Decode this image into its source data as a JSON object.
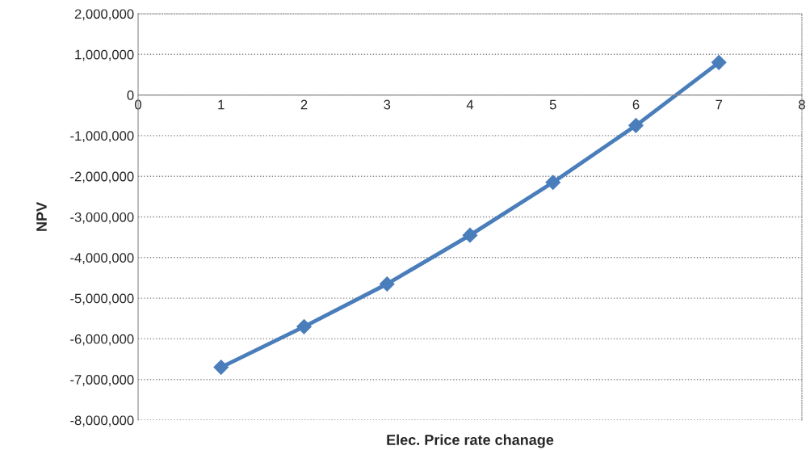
{
  "chart_data": {
    "type": "line",
    "xlabel": "Elec. Price rate chanage",
    "ylabel": "NPV",
    "x": [
      1,
      2,
      3,
      4,
      5,
      6,
      7
    ],
    "series": [
      {
        "color": "#4a7ebb",
        "values": [
          -6700000,
          -5700000,
          -4650000,
          -3450000,
          -2150000,
          -750000,
          800000
        ]
      }
    ],
    "xlim": [
      0,
      8
    ],
    "xticks": [
      0,
      1,
      2,
      3,
      4,
      5,
      6,
      7,
      8
    ],
    "ylim": [
      -8000000,
      2000000
    ],
    "yticks": [
      {
        "value": -8000000,
        "label": "-8,000,000"
      },
      {
        "value": -7000000,
        "label": "-7,000,000"
      },
      {
        "value": -6000000,
        "label": "-6,000,000"
      },
      {
        "value": -5000000,
        "label": "-5,000,000"
      },
      {
        "value": -4000000,
        "label": "-4,000,000"
      },
      {
        "value": -3000000,
        "label": "-3,000,000"
      },
      {
        "value": -2000000,
        "label": "-2,000,000"
      },
      {
        "value": -1000000,
        "label": "-1,000,000"
      },
      {
        "value": 0,
        "label": "0"
      },
      {
        "value": 1000000,
        "label": "1,000,000"
      },
      {
        "value": 2000000,
        "label": "2,000,000"
      }
    ],
    "grid": "y",
    "marker": "diamond",
    "line_style": "solid",
    "legend": false
  }
}
